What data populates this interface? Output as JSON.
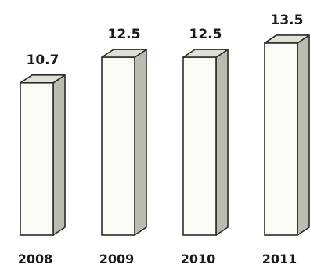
{
  "chart_data": {
    "type": "bar",
    "style": "3d-column",
    "categories": [
      "2008",
      "2009",
      "2010",
      "2011"
    ],
    "values": [
      10.7,
      12.5,
      12.5,
      13.5
    ],
    "value_labels": [
      "10.7",
      "12.5",
      "12.5",
      "13.5"
    ],
    "title": "",
    "xlabel": "",
    "ylabel": "",
    "ylim": [
      0,
      13.5
    ],
    "grid": false,
    "legend": "none",
    "colors": {
      "front": "#fbfbf6",
      "side": "#b9bcae",
      "top": "#dfe1d6",
      "outline": "#2b2b2b"
    }
  }
}
